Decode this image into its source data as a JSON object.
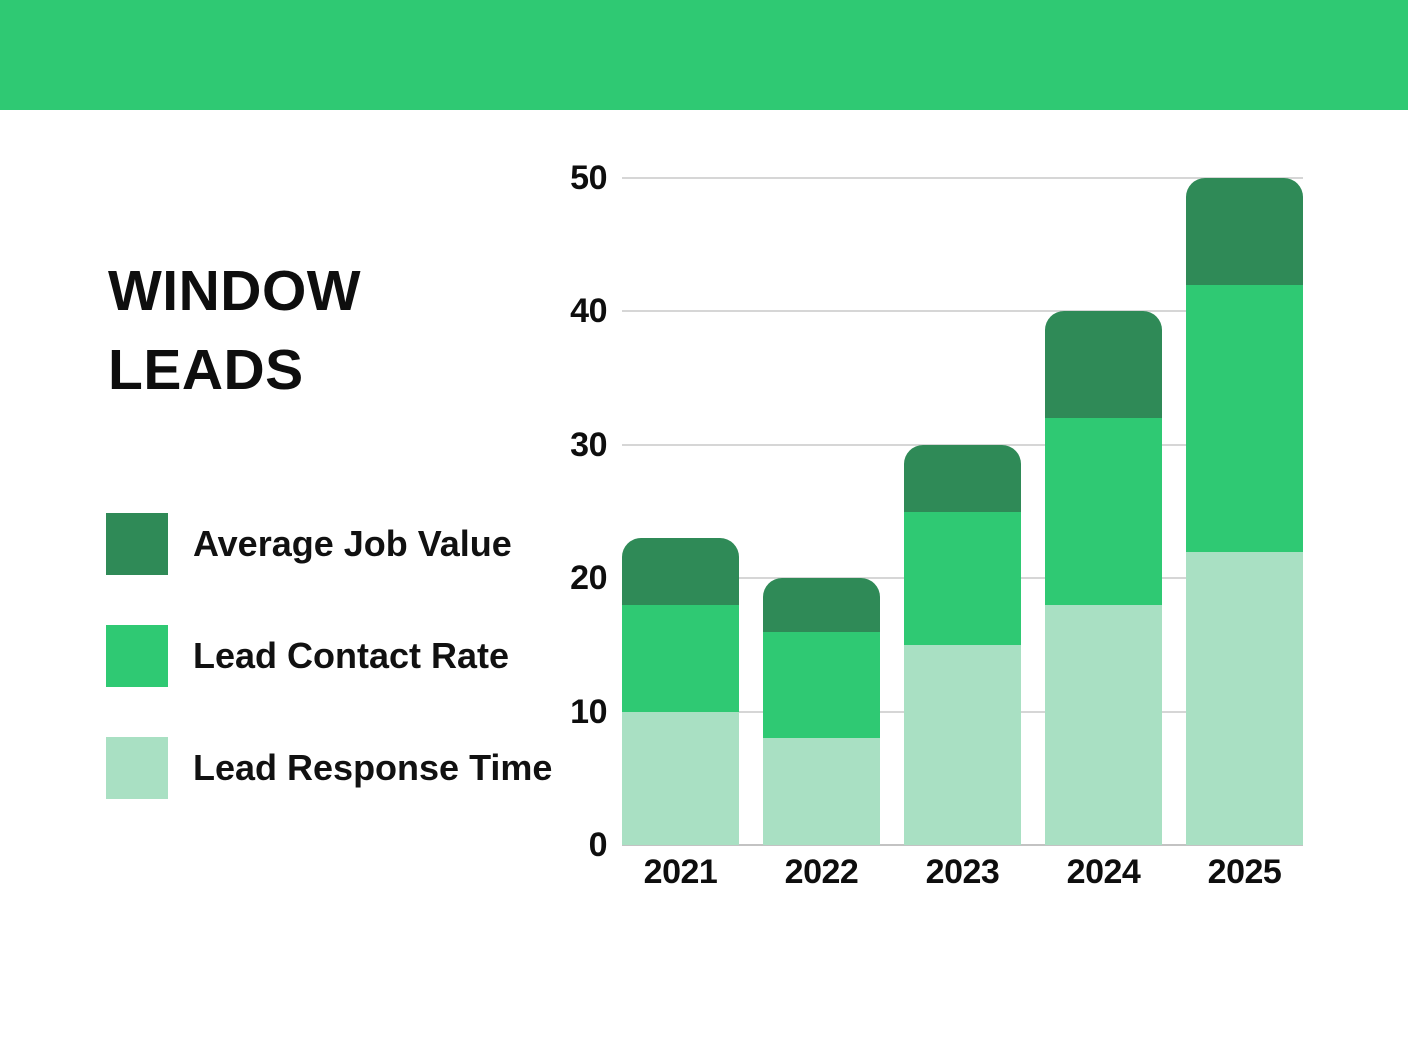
{
  "header": {
    "bar_color": "#2FC973"
  },
  "title": {
    "line1": "WINDOW",
    "line2": "LEADS"
  },
  "legend": {
    "items": [
      {
        "label": "Average Job Value",
        "color": "#2F8A57",
        "icon": "dark-green-swatch"
      },
      {
        "label": "Lead Contact Rate",
        "color": "#2FC973",
        "icon": "medium-green-swatch"
      },
      {
        "label": "Lead Response Time",
        "color": "#A9E0C3",
        "icon": "light-green-swatch"
      }
    ]
  },
  "chart_data": {
    "type": "bar",
    "stacked": true,
    "title": "",
    "xlabel": "",
    "ylabel": "",
    "categories": [
      "2021",
      "2022",
      "2023",
      "2024",
      "2025"
    ],
    "series": [
      {
        "name": "Lead Response Time",
        "color": "#A9E0C3",
        "values": [
          10,
          8,
          15,
          18,
          22
        ]
      },
      {
        "name": "Lead Contact Rate",
        "color": "#2FC973",
        "values": [
          8,
          8,
          10,
          14,
          20
        ]
      },
      {
        "name": "Average Job Value",
        "color": "#2F8A57",
        "values": [
          5,
          4,
          5,
          8,
          8
        ]
      }
    ],
    "stack_totals": [
      23,
      20,
      30,
      40,
      50
    ],
    "cumulative_boundaries": {
      "2021": [
        10,
        18,
        23
      ],
      "2022": [
        8,
        16,
        20
      ],
      "2023": [
        15,
        25,
        30
      ],
      "2024": [
        18,
        32,
        40
      ],
      "2025": [
        22,
        42,
        50
      ]
    },
    "yticks": [
      0,
      10,
      20,
      30,
      40,
      50
    ],
    "ylim": [
      0,
      50
    ],
    "grid": true,
    "gridline_color": "#d6d6d6",
    "legend_position": "left"
  }
}
